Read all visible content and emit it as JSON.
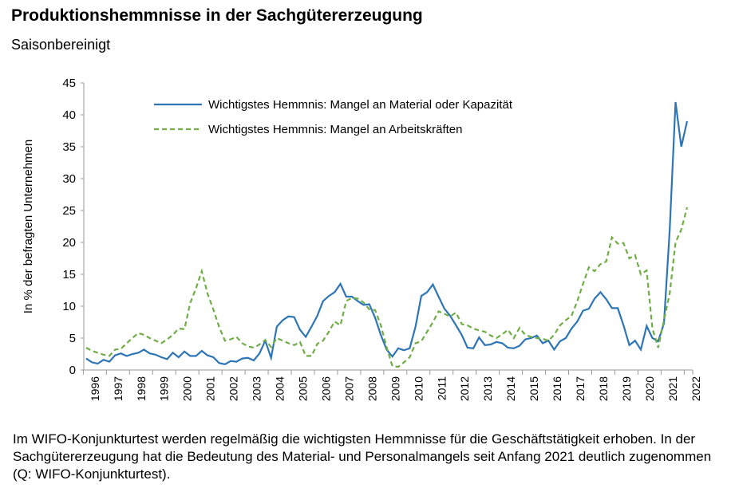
{
  "chart_data": {
    "type": "line",
    "title": "Produktionshemmnisse in der Sachgütererzeugung",
    "subtitle": "Saisonbereinigt",
    "y_label": "In % der befragten Unternehmen",
    "note": "Im WIFO-Konjunkturtest werden regelmäßig die wichtigsten Hemmnisse für die Geschäftstätigkeit erhoben. In der Sachgütererzeugung hat die Bedeutung des Material- und Personalmangels seit Anfang 2021 deutlich zugenommen (Q: WIFO-Konjunkturtest).",
    "categories": [
      "1996",
      null,
      null,
      null,
      "1997",
      null,
      null,
      null,
      "1998",
      null,
      null,
      null,
      "1999",
      null,
      null,
      null,
      "2000",
      null,
      null,
      null,
      "2001",
      null,
      null,
      null,
      "2002",
      null,
      null,
      null,
      "2003",
      null,
      null,
      null,
      "2004",
      null,
      null,
      null,
      "2005",
      null,
      null,
      null,
      "2006",
      null,
      null,
      null,
      "2007",
      null,
      null,
      null,
      "2008",
      null,
      null,
      null,
      "2009",
      null,
      null,
      null,
      "2010",
      null,
      null,
      null,
      "2011",
      null,
      null,
      null,
      "2012",
      null,
      null,
      null,
      "2013",
      null,
      null,
      null,
      "2014",
      null,
      null,
      null,
      "2015",
      null,
      null,
      null,
      "2016",
      null,
      null,
      null,
      "2017",
      null,
      null,
      null,
      "2018",
      null,
      null,
      null,
      "2019",
      null,
      null,
      null,
      "2020",
      null,
      null,
      null,
      "2021",
      null,
      null,
      null,
      "2022"
    ],
    "series": [
      {
        "name": "Wichtigstes Hemmnis: Mangel an Material oder Kapazität",
        "color": "#2e75b6",
        "dash": false,
        "values": [
          1.8,
          1.2,
          1.0,
          1.6,
          1.3,
          2.3,
          2.6,
          2.2,
          2.5,
          2.7,
          3.2,
          2.6,
          2.4,
          2.0,
          1.7,
          2.7,
          2.0,
          2.9,
          2.2,
          2.2,
          3.0,
          2.3,
          2.0,
          1.1,
          0.9,
          1.4,
          1.3,
          1.8,
          1.9,
          1.5,
          2.6,
          4.6,
          1.9,
          6.8,
          7.8,
          8.4,
          8.3,
          6.3,
          5.2,
          6.8,
          8.5,
          10.8,
          11.6,
          12.2,
          13.5,
          11.5,
          11.5,
          10.8,
          10.2,
          10.3,
          8.2,
          5.5,
          3.2,
          2.1,
          3.4,
          3.1,
          3.4,
          6.8,
          11.6,
          12.2,
          13.4,
          11.5,
          9.6,
          8.5,
          7.0,
          5.5,
          3.5,
          3.4,
          5.1,
          3.9,
          4.0,
          4.4,
          4.2,
          3.5,
          3.4,
          3.8,
          4.8,
          5.0,
          5.4,
          4.2,
          4.6,
          3.2,
          4.5,
          5.0,
          6.5,
          7.6,
          9.3,
          9.6,
          11.2,
          12.2,
          11.1,
          9.7,
          9.7,
          7.0,
          3.9,
          4.6,
          3.2,
          6.9,
          5.0,
          4.5,
          7.3,
          22.0,
          42.0,
          35.0,
          39.0
        ]
      },
      {
        "name": "Wichtigstes Hemmnis: Mangel an Arbeitskräften",
        "color": "#70ad47",
        "dash": true,
        "values": [
          3.5,
          3.0,
          2.7,
          2.4,
          2.2,
          3.2,
          3.3,
          4.2,
          5.0,
          5.8,
          5.5,
          5.0,
          4.6,
          4.2,
          4.8,
          5.5,
          6.5,
          6.4,
          10.5,
          12.8,
          15.5,
          12.0,
          9.5,
          6.8,
          4.6,
          4.8,
          5.2,
          4.2,
          3.7,
          3.5,
          4.0,
          4.7,
          3.6,
          5.0,
          4.6,
          4.2,
          3.9,
          4.4,
          2.2,
          2.2,
          4.1,
          4.6,
          6.0,
          7.6,
          7.0,
          10.8,
          11.3,
          11.2,
          10.6,
          9.5,
          9.4,
          7.0,
          3.6,
          0.6,
          0.5,
          1.2,
          2.0,
          4.2,
          4.5,
          6.0,
          7.5,
          9.2,
          8.8,
          8.4,
          9.0,
          7.2,
          7.0,
          6.5,
          6.2,
          6.0,
          5.4,
          5.0,
          5.6,
          6.3,
          5.0,
          6.6,
          5.5,
          5.2,
          5.0,
          4.9,
          4.6,
          5.5,
          7.0,
          7.8,
          8.5,
          10.8,
          13.5,
          16.1,
          15.5,
          16.6,
          17.0,
          20.8,
          19.8,
          19.9,
          17.5,
          18.0,
          15.0,
          15.6,
          6.5,
          3.5,
          7.8,
          12.0,
          20.0,
          22.0,
          25.5
        ]
      }
    ],
    "ylim": [
      0,
      45
    ],
    "yticks": [
      0,
      5,
      10,
      15,
      20,
      25,
      30,
      35,
      40,
      45
    ],
    "legend": "upper left"
  }
}
